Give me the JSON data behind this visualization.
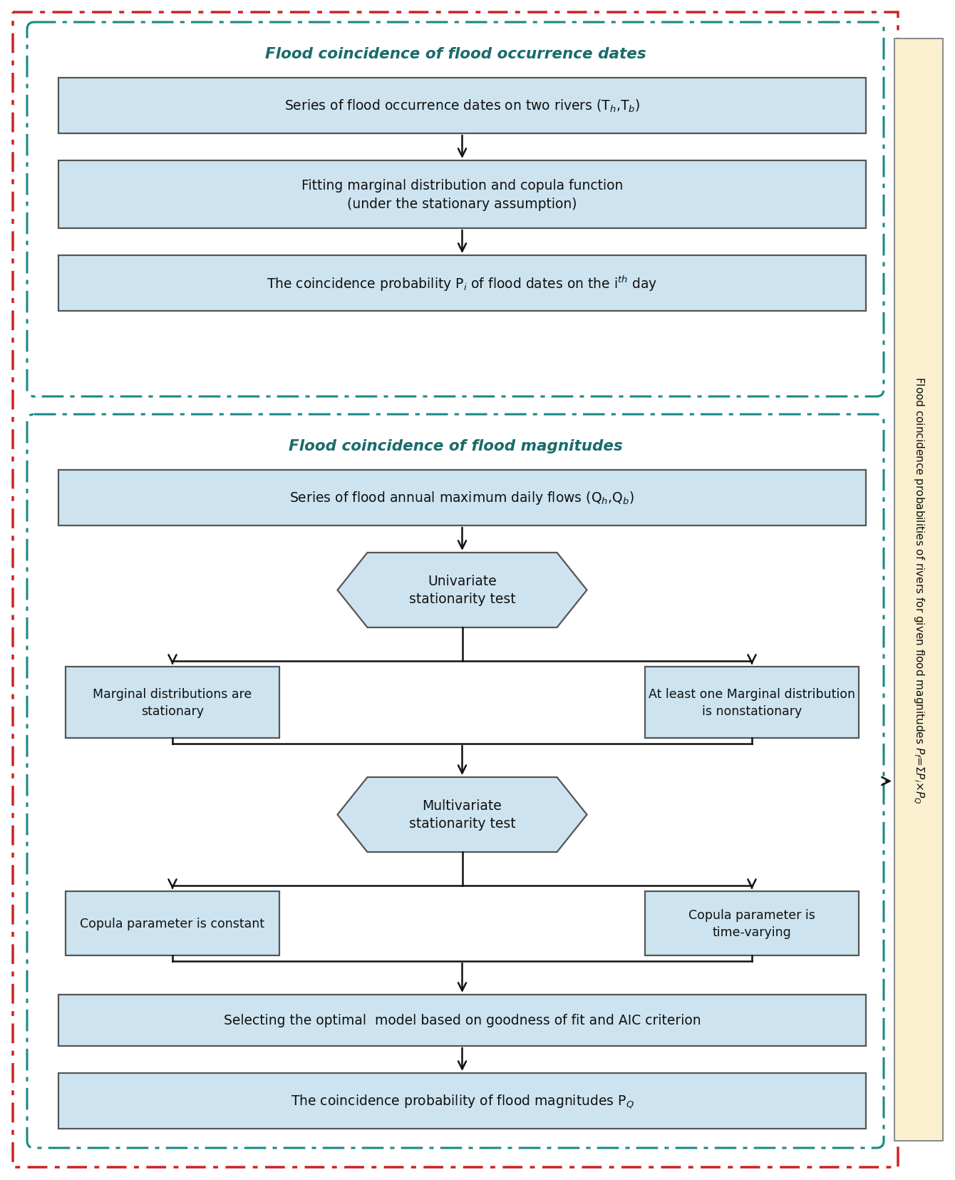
{
  "fig_width": 13.4,
  "fig_height": 16.56,
  "bg_color": "#ffffff",
  "box_fill": "#cde4f0",
  "box_edge": "#555555",
  "hex_fill": "#cde4f0",
  "hex_edge": "#555555",
  "side_fill": "#faf0d0",
  "side_edge": "#888888",
  "outer_red_color": "#cc2222",
  "outer_teal_color": "#1a8888",
  "section1_title": "Flood coincidence of flood occurrence dates",
  "section2_title": "Flood coincidence of flood magnitudes",
  "title_color": "#1a6b6b",
  "arrow_color": "#111111",
  "box_text_color": "#111111",
  "sec1_boxes": [
    "Series of flood occurrence dates on two rivers (T$_h$,T$_b$)",
    "Fitting marginal distribution and copula function\n(under the stationary assumption)",
    "The coincidence probability P$_i$ of flood dates on the i$^{th}$ day"
  ],
  "sec2_box1": "Series of flood annual maximum daily flows (Q$_h$,Q$_b$)",
  "hex1_text": "Univariate\nstationarity test",
  "hex2_text": "Multivariate\nstationarity test",
  "branch1_left": "Marginal distributions are\nstationary",
  "branch1_right": "At least one Marginal distribution\nis nonstationary",
  "branch2_left": "Copula parameter is constant",
  "branch2_right": "Copula parameter is\ntime-varying",
  "sec2_box_aic": "Selecting the optimal  model based on goodness of fit and AIC criterion",
  "sec2_box_final": "The coincidence probability of flood magnitudes P$_Q$",
  "side_text_line": "Flood coincidence probabilities of rivers for given flood magnitudes P$_f$=$\\Sigma$P$_i$$\\times$P$_Q$"
}
